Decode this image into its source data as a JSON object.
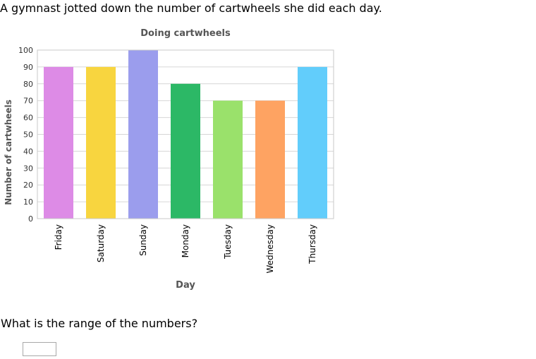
{
  "prompt": "A gymnast jotted down the number of cartwheels she did each day.",
  "question": "What is the range of the numbers?",
  "answer": {
    "value": ""
  },
  "chart_data": {
    "type": "bar",
    "title": "Doing cartwheels",
    "xlabel": "Day",
    "ylabel": "Number of cartwheels",
    "categories": [
      "Friday",
      "Saturday",
      "Sunday",
      "Monday",
      "Tuesday",
      "Wednesday",
      "Thursday"
    ],
    "values": [
      90,
      90,
      100,
      80,
      70,
      70,
      90
    ],
    "colors": [
      "#dd8be6",
      "#f8d53f",
      "#9b9ded",
      "#2cb866",
      "#9ae16b",
      "#fea362",
      "#62cdfb"
    ],
    "ylim": [
      0,
      100
    ],
    "yticks": [
      0,
      10,
      20,
      30,
      40,
      50,
      60,
      70,
      80,
      90,
      100
    ],
    "grid": true
  }
}
